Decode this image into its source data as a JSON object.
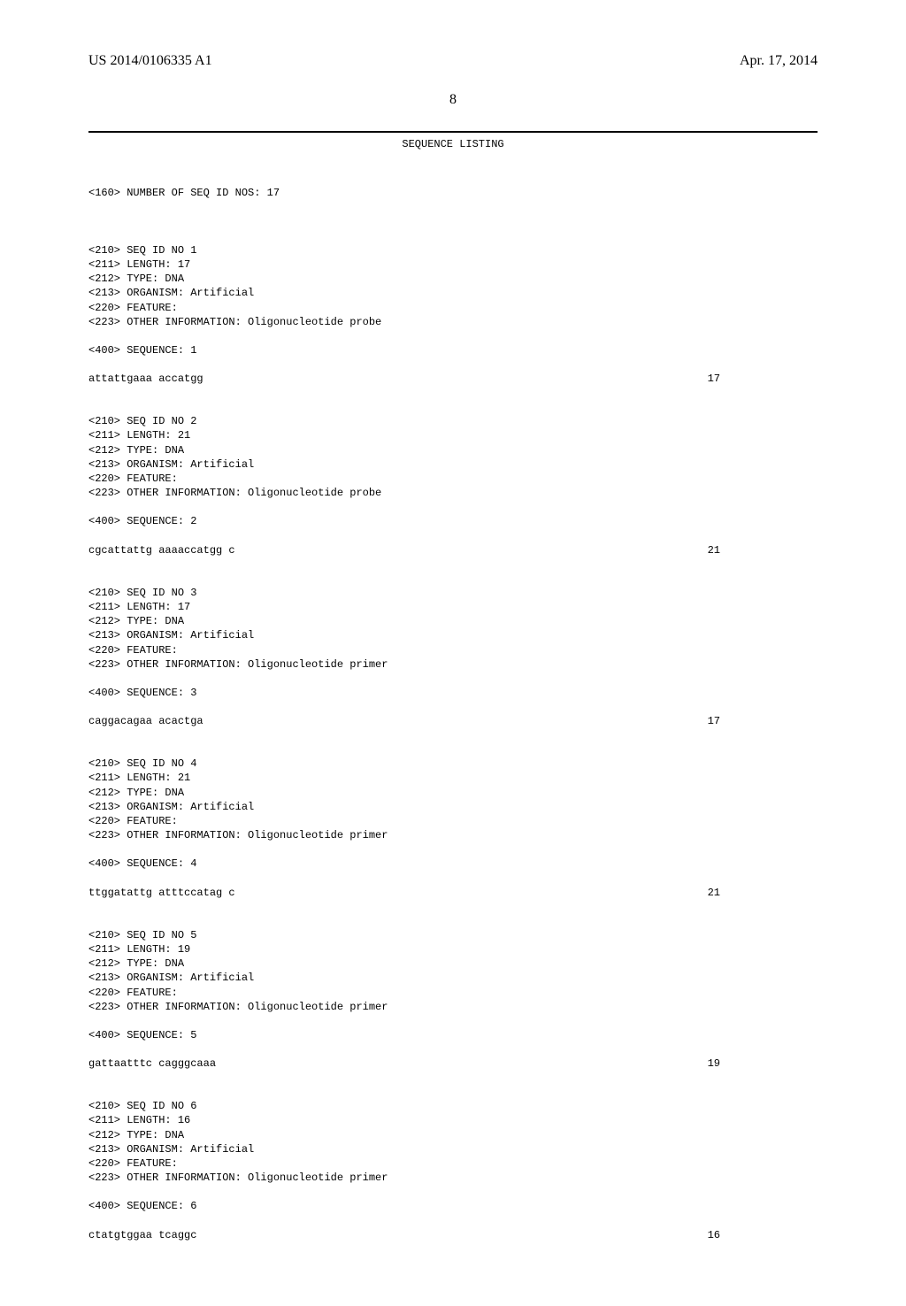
{
  "header": {
    "left": "US 2014/0106335 A1",
    "right": "Apr. 17, 2014"
  },
  "page_number": "8",
  "listing_title": "SEQUENCE LISTING",
  "count_line": "<160> NUMBER OF SEQ ID NOS: 17",
  "sequences": [
    {
      "meta": [
        "<210> SEQ ID NO 1",
        "<211> LENGTH: 17",
        "<212> TYPE: DNA",
        "<213> ORGANISM: Artificial",
        "<220> FEATURE:",
        "<223> OTHER INFORMATION: Oligonucleotide probe"
      ],
      "seq_header": "<400> SEQUENCE: 1",
      "sequence": "attattgaaa accatgg",
      "length": "17"
    },
    {
      "meta": [
        "<210> SEQ ID NO 2",
        "<211> LENGTH: 21",
        "<212> TYPE: DNA",
        "<213> ORGANISM: Artificial",
        "<220> FEATURE:",
        "<223> OTHER INFORMATION: Oligonucleotide probe"
      ],
      "seq_header": "<400> SEQUENCE: 2",
      "sequence": "cgcattattg aaaaccatgg c",
      "length": "21"
    },
    {
      "meta": [
        "<210> SEQ ID NO 3",
        "<211> LENGTH: 17",
        "<212> TYPE: DNA",
        "<213> ORGANISM: Artificial",
        "<220> FEATURE:",
        "<223> OTHER INFORMATION: Oligonucleotide primer"
      ],
      "seq_header": "<400> SEQUENCE: 3",
      "sequence": "caggacagaa acactga",
      "length": "17"
    },
    {
      "meta": [
        "<210> SEQ ID NO 4",
        "<211> LENGTH: 21",
        "<212> TYPE: DNA",
        "<213> ORGANISM: Artificial",
        "<220> FEATURE:",
        "<223> OTHER INFORMATION: Oligonucleotide primer"
      ],
      "seq_header": "<400> SEQUENCE: 4",
      "sequence": "ttggatattg atttccatag c",
      "length": "21"
    },
    {
      "meta": [
        "<210> SEQ ID NO 5",
        "<211> LENGTH: 19",
        "<212> TYPE: DNA",
        "<213> ORGANISM: Artificial",
        "<220> FEATURE:",
        "<223> OTHER INFORMATION: Oligonucleotide primer"
      ],
      "seq_header": "<400> SEQUENCE: 5",
      "sequence": "gattaatttc cagggcaaa",
      "length": "19"
    },
    {
      "meta": [
        "<210> SEQ ID NO 6",
        "<211> LENGTH: 16",
        "<212> TYPE: DNA",
        "<213> ORGANISM: Artificial",
        "<220> FEATURE:",
        "<223> OTHER INFORMATION: Oligonucleotide primer"
      ],
      "seq_header": "<400> SEQUENCE: 6",
      "sequence": "ctatgtggaa tcaggc",
      "length": "16"
    }
  ]
}
